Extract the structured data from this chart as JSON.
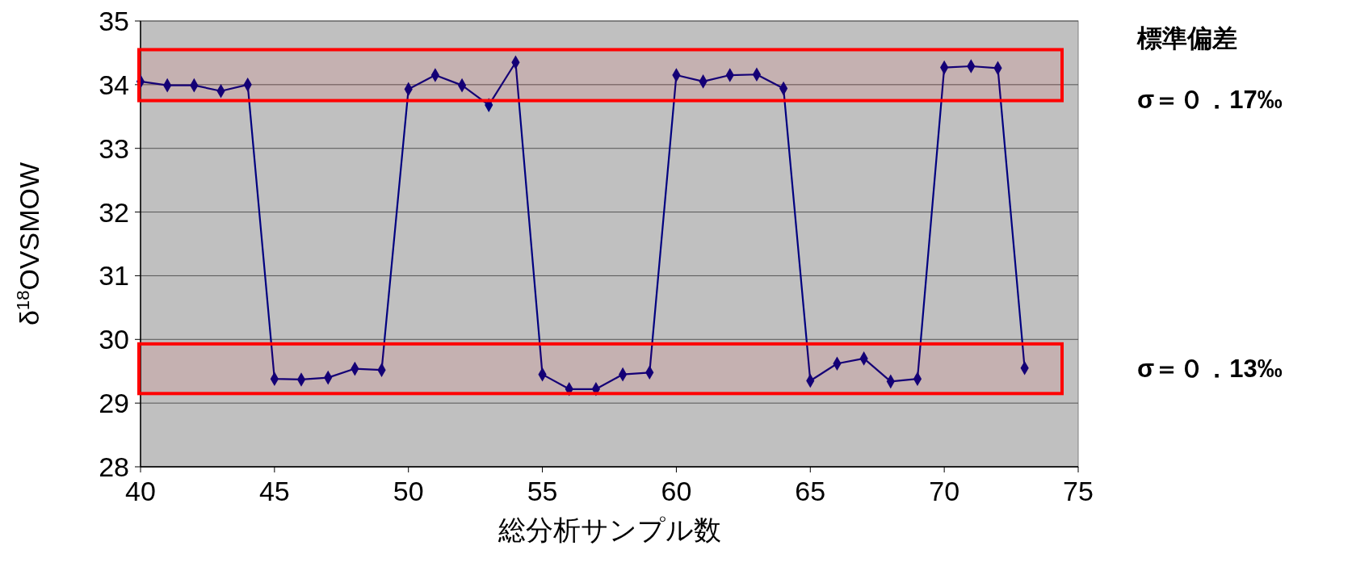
{
  "chart_data": {
    "type": "line",
    "xlabel": "総分析サンプル数",
    "ylabel": "δ$^{18}$OVSMOW",
    "x": [
      40,
      41,
      42,
      43,
      44,
      45,
      46,
      47,
      48,
      49,
      50,
      51,
      52,
      53,
      54,
      55,
      56,
      57,
      58,
      59,
      60,
      61,
      62,
      63,
      64,
      65,
      66,
      67,
      68,
      69,
      70,
      71,
      72,
      73
    ],
    "series": [
      {
        "color": "#000080",
        "values": [
          34.05,
          33.99,
          33.99,
          33.9,
          34.0,
          29.38,
          29.37,
          29.4,
          29.54,
          29.52,
          33.93,
          34.15,
          33.99,
          33.68,
          34.35,
          29.45,
          29.22,
          29.22,
          29.45,
          29.48,
          34.15,
          34.05,
          34.15,
          34.16,
          33.94,
          29.35,
          29.62,
          29.7,
          29.34,
          29.38,
          34.27,
          34.29,
          34.26,
          29.55
        ]
      }
    ],
    "xlim": [
      40,
      75
    ],
    "xticks": [
      40,
      45,
      50,
      55,
      60,
      65,
      70,
      75
    ],
    "ylim": [
      28,
      35
    ],
    "yticks": [
      28,
      29,
      30,
      31,
      32,
      33,
      34,
      35
    ],
    "grid": "y",
    "marker": "diamond",
    "line_style": "solid",
    "bands": [
      {
        "axis": "y",
        "from": 33.75,
        "to": 34.55,
        "label": "σ＝０．17‰",
        "color": "#ff0000"
      },
      {
        "axis": "y",
        "from": 29.15,
        "to": 29.93,
        "label": "σ＝０．13‰",
        "color": "#ff0000"
      }
    ],
    "annotations": [
      "標準偏差"
    ]
  }
}
